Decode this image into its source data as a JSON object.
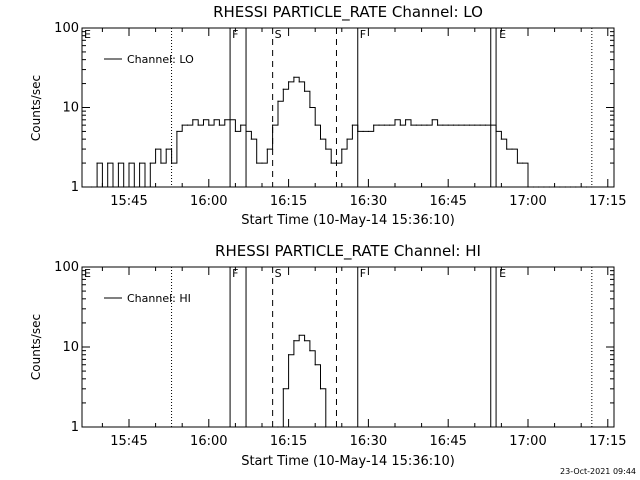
{
  "timestamp": "23-Oct-2021 09:44",
  "chart_data": [
    {
      "type": "line",
      "title": "RHESSI PARTICLE_RATE Channel: LO",
      "xlabel": "Start Time (10-May-14 15:36:10)",
      "ylabel": "Counts/sec",
      "y_scale": "log",
      "ylim": [
        1,
        100
      ],
      "xlim": [
        "15:36:10",
        "17:16:10"
      ],
      "x_ticks": [
        "15:45",
        "16:00",
        "16:15",
        "16:30",
        "16:45",
        "17:00",
        "17:15"
      ],
      "y_ticks": [
        "1",
        "10",
        "100"
      ],
      "legend": {
        "position": "top-left",
        "entries": [
          "Channel: LO"
        ]
      },
      "flag_labels": [
        "E",
        "F",
        "S",
        "F",
        "E"
      ],
      "markers": {
        "dotted": [
          "15:53",
          "17:12"
        ],
        "solid": [
          "16:04",
          "16:07",
          "16:28",
          "16:53",
          "16:54"
        ],
        "dashed": [
          "16:12",
          "16:24"
        ]
      },
      "series": [
        {
          "name": "Channel: LO",
          "x": [
            "15:38",
            "15:39",
            "15:40",
            "15:41",
            "15:42",
            "15:43",
            "15:44",
            "15:45",
            "15:46",
            "15:47",
            "15:48",
            "15:49",
            "15:50",
            "15:51",
            "15:52",
            "15:53",
            "15:54",
            "15:55",
            "15:56",
            "15:57",
            "15:58",
            "15:59",
            "16:00",
            "16:01",
            "16:02",
            "16:03",
            "16:04",
            "16:05",
            "16:06",
            "16:07",
            "16:08",
            "16:09",
            "16:10",
            "16:11",
            "16:12",
            "16:13",
            "16:14",
            "16:15",
            "16:16",
            "16:17",
            "16:18",
            "16:19",
            "16:20",
            "16:21",
            "16:22",
            "16:23",
            "16:24",
            "16:25",
            "16:26",
            "16:27",
            "16:28",
            "16:29",
            "16:30",
            "16:31",
            "16:32",
            "16:33",
            "16:34",
            "16:35",
            "16:36",
            "16:37",
            "16:38",
            "16:39",
            "16:40",
            "16:41",
            "16:42",
            "16:43",
            "16:44",
            "16:45",
            "16:46",
            "16:47",
            "16:48",
            "16:49",
            "16:50",
            "16:51",
            "16:52",
            "16:53",
            "16:54",
            "16:55",
            "16:56",
            "16:57",
            "16:58",
            "16:59",
            "17:00",
            "17:01",
            "17:02",
            "17:03",
            "17:04",
            "17:05",
            "17:06",
            "17:07",
            "17:08",
            "17:09",
            "17:10",
            "17:11",
            "17:12"
          ],
          "y": [
            1,
            2,
            1,
            2,
            1,
            2,
            1,
            2,
            1,
            2,
            1,
            2,
            3,
            2,
            3,
            2,
            5,
            6,
            6,
            7,
            6,
            7,
            6,
            7,
            6,
            7,
            7,
            5,
            6,
            5,
            4,
            2,
            2,
            3,
            6,
            12,
            17,
            21,
            24,
            21,
            16,
            10,
            6,
            4,
            3,
            2,
            2,
            3,
            4,
            6,
            5,
            5,
            5,
            6,
            6,
            6,
            6,
            7,
            6,
            7,
            6,
            6,
            6,
            6,
            7,
            6,
            6,
            6,
            6,
            6,
            6,
            6,
            6,
            6,
            6,
            6,
            5,
            4,
            3,
            3,
            2,
            2,
            1,
            1,
            1,
            1,
            1,
            1,
            1,
            1,
            1,
            1,
            1,
            1,
            1
          ]
        }
      ]
    },
    {
      "type": "line",
      "title": "RHESSI PARTICLE_RATE Channel: HI",
      "xlabel": "Start Time (10-May-14 15:36:10)",
      "ylabel": "Counts/sec",
      "y_scale": "log",
      "ylim": [
        1,
        100
      ],
      "xlim": [
        "15:36:10",
        "17:16:10"
      ],
      "x_ticks": [
        "15:45",
        "16:00",
        "16:15",
        "16:30",
        "16:45",
        "17:00",
        "17:15"
      ],
      "y_ticks": [
        "1",
        "10",
        "100"
      ],
      "legend": {
        "position": "top-left",
        "entries": [
          "Channel: HI"
        ]
      },
      "flag_labels": [
        "E",
        "F",
        "S",
        "F",
        "E"
      ],
      "markers": {
        "dotted": [
          "15:53",
          "17:12"
        ],
        "solid": [
          "16:04",
          "16:07",
          "16:28",
          "16:53",
          "16:54"
        ],
        "dashed": [
          "16:12",
          "16:24"
        ]
      },
      "series": [
        {
          "name": "Channel: HI",
          "x": [
            "16:13",
            "16:14",
            "16:15",
            "16:16",
            "16:17",
            "16:18",
            "16:19",
            "16:20",
            "16:21",
            "16:22"
          ],
          "y": [
            1,
            3,
            8,
            12,
            14,
            12,
            9,
            6,
            3,
            1
          ]
        }
      ]
    }
  ]
}
